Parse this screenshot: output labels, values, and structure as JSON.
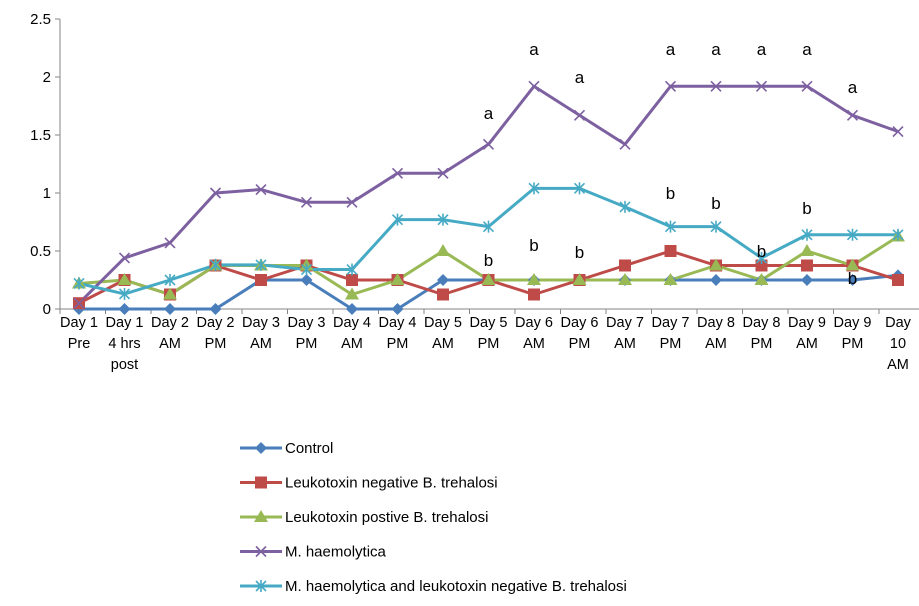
{
  "chart_data": {
    "type": "line",
    "categories": [
      "Day 1 Pre",
      "Day 1 4 hrs post",
      "Day 2 AM",
      "Day 2 PM",
      "Day 3 AM",
      "Day 3 PM",
      "Day 4 AM",
      "Day 4 PM",
      "Day 5 AM",
      "Day 5 PM",
      "Day 6 AM",
      "Day 6 PM",
      "Day 7 AM",
      "Day 7 PM",
      "Day 8 AM",
      "Day 8 PM",
      "Day 9 AM",
      "Day 9 PM",
      "Day 10 AM"
    ],
    "series": [
      {
        "name": "Control",
        "color": "#4a7ebb",
        "marker": "diamond",
        "values": [
          0,
          0,
          0,
          0,
          0.25,
          0.25,
          0,
          0,
          0.25,
          0.25,
          0.25,
          0.25,
          0.25,
          0.25,
          0.25,
          0.25,
          0.25,
          0.25,
          0.29
        ]
      },
      {
        "name": "Leukotoxin negative B. trehalosi",
        "color": "#be4b48",
        "marker": "square",
        "values": [
          0.05,
          0.25,
          0.125,
          0.375,
          0.25,
          0.375,
          0.25,
          0.25,
          0.125,
          0.25,
          0.125,
          0.25,
          0.375,
          0.5,
          0.375,
          0.375,
          0.375,
          0.375,
          0.25
        ]
      },
      {
        "name": "Leukotoxin postive B. trehalosi",
        "color": "#98b954",
        "marker": "triangle",
        "values": [
          0.22,
          0.25,
          0.125,
          0.375,
          0.375,
          0.375,
          0.125,
          0.25,
          0.5,
          0.25,
          0.25,
          0.25,
          0.25,
          0.25,
          0.375,
          0.25,
          0.5,
          0.375,
          0.625
        ]
      },
      {
        "name": "M. haemolytica",
        "color": "#7d60a0",
        "marker": "x",
        "values": [
          0.05,
          0.44,
          0.57,
          1.0,
          1.03,
          0.92,
          0.92,
          1.17,
          1.17,
          1.42,
          1.92,
          1.67,
          1.42,
          1.92,
          1.92,
          1.92,
          1.92,
          1.67,
          1.53
        ]
      },
      {
        "name": "M. haemolytica and leukotoxin negative B. trehalosi",
        "color": "#46aac5",
        "marker": "star",
        "values": [
          0.22,
          0.13,
          0.25,
          0.38,
          0.38,
          0.34,
          0.34,
          0.77,
          0.77,
          0.71,
          1.04,
          1.04,
          0.88,
          0.71,
          0.71,
          0.44,
          0.64,
          0.64,
          0.64
        ]
      }
    ],
    "ylim": [
      0,
      2.5
    ],
    "yticks": [
      0,
      0.5,
      1,
      1.5,
      2,
      2.5
    ],
    "grid": false,
    "legend": "bottom",
    "annotations": [
      {
        "text": "a",
        "category": "Day 5 PM"
      },
      {
        "text": "a",
        "category": "Day 6 AM"
      },
      {
        "text": "a",
        "category": "Day 6 PM"
      },
      {
        "text": "a",
        "category": "Day 7 PM"
      },
      {
        "text": "a",
        "category": "Day 8 AM"
      },
      {
        "text": "a",
        "category": "Day 8 PM"
      },
      {
        "text": "a",
        "category": "Day 9 AM"
      },
      {
        "text": "a",
        "category": "Day 9 PM"
      },
      {
        "text": "b",
        "category": "Day 5 PM"
      },
      {
        "text": "b",
        "category": "Day 6 AM"
      },
      {
        "text": "b",
        "category": "Day 6 PM"
      },
      {
        "text": "b",
        "category": "Day 7 PM"
      },
      {
        "text": "b",
        "category": "Day 8 AM"
      },
      {
        "text": "b",
        "category": "Day 8 PM"
      },
      {
        "text": "b",
        "category": "Day 9 AM"
      },
      {
        "text": "b",
        "category": "Day 9 PM"
      }
    ]
  }
}
